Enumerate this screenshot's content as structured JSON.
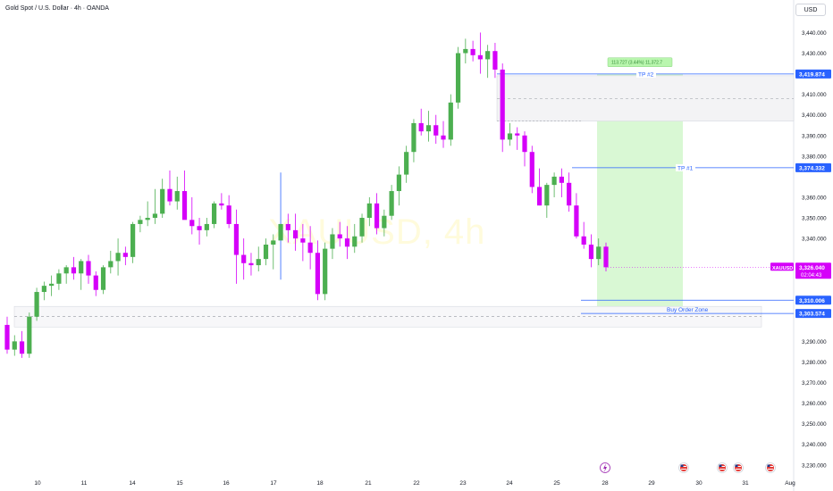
{
  "header": {
    "symbol_title": "Gold Spot / U.S. Dollar · 4h · OANDA",
    "currency": "USD"
  },
  "watermark": "XAUUSD, 4h",
  "colors": {
    "bull": "#4caf50",
    "bear": "#d500f9",
    "wick_bull": "#4caf50",
    "wick_bear": "#d500f9",
    "blue_line": "#2962ff",
    "target_zone": "#ccf5c5",
    "label_blue": "#2962ff",
    "price_label": "#d500f9"
  },
  "chart_data": {
    "type": "candlestick",
    "symbol": "XAUUSD",
    "timeframe": "4h",
    "y_ticks": [
      3440,
      3430,
      3420,
      3410,
      3400,
      3390,
      3380,
      3370,
      3360,
      3350,
      3340,
      3330,
      3320,
      3310,
      3300,
      3290,
      3280,
      3270,
      3260,
      3250,
      3240,
      3230
    ],
    "y_tick_labels": [
      "3,440.000",
      "3,430.000",
      "3,420.000",
      "3,410.000",
      "3,400.000",
      "3,390.000",
      "3,380.000",
      "3,370.000",
      "3,360.000",
      "3,350.000",
      "3,340.000",
      "3,330.000",
      "3,320.000",
      "3,310.000",
      "3,300.000",
      "3,290.000",
      "3,280.000",
      "3,270.000",
      "3,260.000",
      "3,250.000",
      "3,240.000",
      "3,230.000"
    ],
    "ylim": [
      3226,
      3448
    ],
    "x_ticks": [
      "10",
      "11",
      "14",
      "15",
      "16",
      "17",
      "18",
      "21",
      "22",
      "23",
      "24",
      "25",
      "28",
      "29",
      "30",
      "31",
      "Aug"
    ],
    "candles": [
      [
        3298,
        3302,
        3284,
        3286
      ],
      [
        3286,
        3293,
        3283,
        3290
      ],
      [
        3290,
        3295,
        3282,
        3284
      ],
      [
        3284,
        3304,
        3282,
        3302
      ],
      [
        3302,
        3316,
        3300,
        3314
      ],
      [
        3314,
        3319,
        3310,
        3317
      ],
      [
        3317,
        3322,
        3312,
        3318
      ],
      [
        3318,
        3325,
        3315,
        3323
      ],
      [
        3323,
        3327,
        3318,
        3326
      ],
      [
        3326,
        3331,
        3320,
        3323
      ],
      [
        3323,
        3330,
        3315,
        3329
      ],
      [
        3329,
        3332,
        3318,
        3322
      ],
      [
        3322,
        3324,
        3312,
        3315
      ],
      [
        3315,
        3327,
        3313,
        3326
      ],
      [
        3326,
        3334,
        3323,
        3329
      ],
      [
        3329,
        3340,
        3322,
        3333
      ],
      [
        3333,
        3336,
        3327,
        3331
      ],
      [
        3331,
        3348,
        3328,
        3347
      ],
      [
        3347,
        3351,
        3343,
        3349
      ],
      [
        3349,
        3358,
        3346,
        3350
      ],
      [
        3350,
        3364,
        3347,
        3352
      ],
      [
        3352,
        3369,
        3350,
        3364
      ],
      [
        3364,
        3373,
        3356,
        3358
      ],
      [
        3358,
        3370,
        3354,
        3363
      ],
      [
        3363,
        3373,
        3350,
        3349
      ],
      [
        3349,
        3360,
        3342,
        3346
      ],
      [
        3346,
        3350,
        3337,
        3344
      ],
      [
        3344,
        3350,
        3341,
        3347
      ],
      [
        3347,
        3358,
        3345,
        3357
      ],
      [
        3357,
        3362,
        3354,
        3356
      ],
      [
        3356,
        3361,
        3345,
        3347
      ],
      [
        3347,
        3354,
        3318,
        3332
      ],
      [
        3332,
        3340,
        3320,
        3328
      ],
      [
        3328,
        3333,
        3322,
        3327
      ],
      [
        3327,
        3336,
        3324,
        3330
      ],
      [
        3330,
        3340,
        3327,
        3337
      ],
      [
        3337,
        3342,
        3325,
        3339
      ],
      [
        3339,
        3372,
        3320,
        3347
      ],
      [
        3347,
        3352,
        3338,
        3344
      ],
      [
        3344,
        3352,
        3334,
        3340
      ],
      [
        3340,
        3347,
        3329,
        3338
      ],
      [
        3338,
        3346,
        3325,
        3333
      ],
      [
        3333,
        3339,
        3310,
        3313
      ],
      [
        3313,
        3338,
        3310,
        3335
      ],
      [
        3335,
        3345,
        3330,
        3342
      ],
      [
        3342,
        3348,
        3336,
        3340
      ],
      [
        3340,
        3346,
        3330,
        3336
      ],
      [
        3336,
        3347,
        3333,
        3341
      ],
      [
        3341,
        3352,
        3338,
        3350
      ],
      [
        3350,
        3360,
        3346,
        3357
      ],
      [
        3357,
        3362,
        3342,
        3345
      ],
      [
        3345,
        3354,
        3341,
        3351
      ],
      [
        3351,
        3366,
        3349,
        3363
      ],
      [
        3363,
        3375,
        3356,
        3371
      ],
      [
        3371,
        3385,
        3367,
        3382
      ],
      [
        3382,
        3398,
        3377,
        3396
      ],
      [
        3396,
        3403,
        3390,
        3392
      ],
      [
        3392,
        3402,
        3387,
        3395
      ],
      [
        3395,
        3400,
        3386,
        3390
      ],
      [
        3390,
        3397,
        3384,
        3388
      ],
      [
        3388,
        3410,
        3385,
        3406
      ],
      [
        3406,
        3433,
        3403,
        3430
      ],
      [
        3430,
        3437,
        3425,
        3432
      ],
      [
        3432,
        3436,
        3426,
        3429
      ],
      [
        3429,
        3440,
        3420,
        3427
      ],
      [
        3427,
        3434,
        3418,
        3431
      ],
      [
        3431,
        3435,
        3418,
        3422
      ],
      [
        3422,
        3425,
        3382,
        3388
      ],
      [
        3388,
        3396,
        3385,
        3391
      ],
      [
        3391,
        3394,
        3383,
        3390
      ],
      [
        3390,
        3392,
        3375,
        3382
      ],
      [
        3382,
        3385,
        3362,
        3365
      ],
      [
        3365,
        3374,
        3356,
        3356
      ],
      [
        3356,
        3367,
        3350,
        3366
      ],
      [
        3366,
        3372,
        3360,
        3370
      ],
      [
        3370,
        3374,
        3360,
        3367
      ],
      [
        3367,
        3372,
        3353,
        3356
      ],
      [
        3356,
        3362,
        3340,
        3341
      ],
      [
        3341,
        3348,
        3335,
        3337
      ],
      [
        3337,
        3342,
        3326,
        3330
      ],
      [
        3330,
        3340,
        3327,
        3336
      ],
      [
        3336,
        3338,
        3324,
        3326
      ]
    ],
    "levels": [
      {
        "name": "TP #2",
        "value": 3419.874,
        "label": "3,419.874"
      },
      {
        "name": "TP #1",
        "value": 3374.332,
        "label": "3,374.332"
      },
      {
        "name": "",
        "value": 3310.006,
        "label": "3,310.006"
      },
      {
        "name": "",
        "value": 3303.574,
        "label": "3,303.574"
      }
    ],
    "zones": [
      {
        "label": "",
        "top": 3419,
        "bottom": 3397
      },
      {
        "label": "Buy Order Zone",
        "top": 3307,
        "bottom": 3297
      }
    ],
    "target_box": {
      "top": 3420,
      "bottom": 3306,
      "stats": "113.727 (3.44%) 11,372.7"
    },
    "current": {
      "symbol": "XAUUSD",
      "price": "3,326.040",
      "countdown": "02:04:43",
      "value": 3326.04
    },
    "event_icons": [
      "⚡",
      "🇺🇸",
      "🇺🇸",
      "🇺🇸",
      "🇺🇸"
    ]
  }
}
